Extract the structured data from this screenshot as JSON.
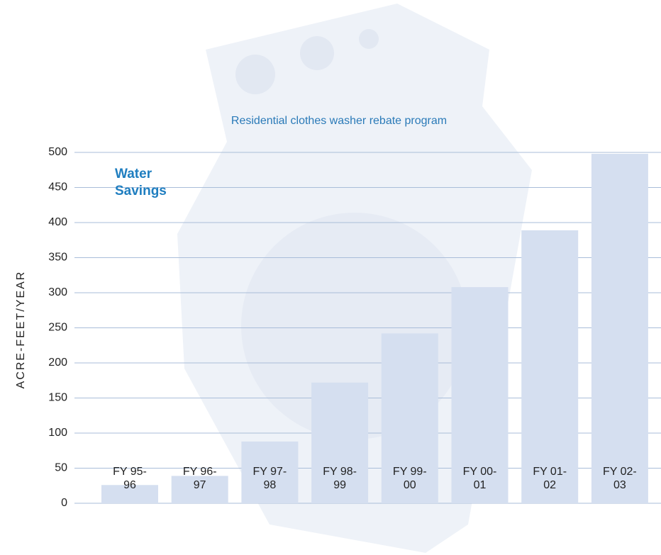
{
  "chart_data": {
    "type": "bar",
    "title": "Residential clothes washer rebate program",
    "annotation": "Water Savings",
    "ylabel": "ACRE-FEET/YEAR",
    "categories": [
      "FY 95-96",
      "FY 96-97",
      "FY 97-98",
      "FY 98-99",
      "FY 99-00",
      "FY 00-01",
      "FY 01-02",
      "FY 02-03"
    ],
    "values": [
      26,
      39,
      88,
      172,
      242,
      308,
      389,
      498
    ],
    "color": "#d5dff0",
    "ylim": [
      0,
      500
    ],
    "yticks": [
      0,
      50,
      100,
      150,
      200,
      250,
      300,
      350,
      400,
      450,
      500
    ],
    "grid": true
  }
}
